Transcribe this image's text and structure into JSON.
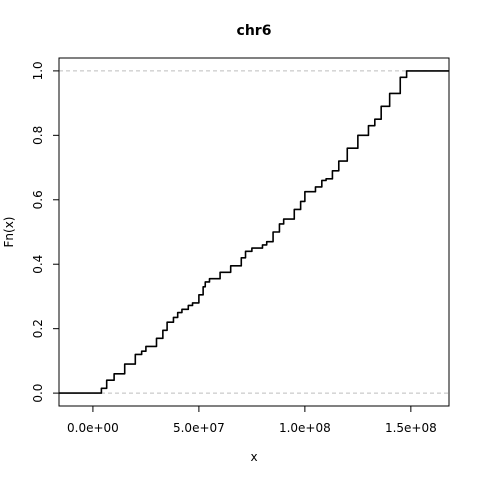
{
  "chart_data": {
    "type": "line",
    "title": "chr6",
    "xlabel": "x",
    "ylabel": "Fn(x)",
    "xlim": [
      -16000000,
      168000000
    ],
    "ylim": [
      -0.04,
      1.04
    ],
    "xticks": [
      {
        "value": 0,
        "label": "0.0e+00"
      },
      {
        "value": 50000000,
        "label": "5.0e+07"
      },
      {
        "value": 100000000,
        "label": "1.0e+08"
      },
      {
        "value": 150000000,
        "label": "1.5e+08"
      }
    ],
    "yticks": [
      {
        "value": 0.0,
        "label": "0.0"
      },
      {
        "value": 0.2,
        "label": "0.2"
      },
      {
        "value": 0.4,
        "label": "0.4"
      },
      {
        "value": 0.6,
        "label": "0.6"
      },
      {
        "value": 0.8,
        "label": "0.8"
      },
      {
        "value": 1.0,
        "label": "1.0"
      }
    ],
    "reference_lines_y": [
      0,
      1
    ],
    "series": [
      {
        "x": [
          -16000000,
          2800000,
          4000000,
          6500000,
          10000000,
          15000000,
          20000000,
          23000000,
          25000000,
          30000000,
          33000000,
          35000000,
          38000000,
          40000000,
          42000000,
          45000000,
          47000000,
          50000000,
          52000000,
          53000000,
          55000000,
          60000000,
          65000000,
          70000000,
          72000000,
          75000000,
          80000000,
          82000000,
          85000000,
          88000000,
          90000000,
          95000000,
          98000000,
          100000000,
          105000000,
          108000000,
          110000000,
          113000000,
          116000000,
          120000000,
          125000000,
          130000000,
          133000000,
          136000000,
          140000000,
          145000000,
          148000000,
          150000000,
          168000000
        ],
        "y": [
          0,
          0,
          0.015,
          0.04,
          0.06,
          0.09,
          0.12,
          0.13,
          0.145,
          0.17,
          0.195,
          0.22,
          0.235,
          0.25,
          0.26,
          0.272,
          0.28,
          0.305,
          0.33,
          0.345,
          0.355,
          0.375,
          0.395,
          0.42,
          0.44,
          0.45,
          0.46,
          0.47,
          0.5,
          0.525,
          0.54,
          0.57,
          0.595,
          0.625,
          0.64,
          0.66,
          0.665,
          0.69,
          0.72,
          0.76,
          0.8,
          0.83,
          0.85,
          0.89,
          0.93,
          0.98,
          1.0,
          1.0,
          1.0
        ]
      }
    ]
  }
}
